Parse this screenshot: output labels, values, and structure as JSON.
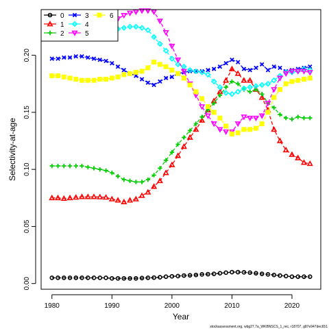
{
  "chart_data": {
    "type": "line",
    "xlabel": "Year",
    "ylabel": "Selectivity-at-age",
    "xlim": [
      1978.2,
      2024.8
    ],
    "ylim": [
      -0.005,
      0.24
    ],
    "x_ticks": [
      1980,
      1990,
      2000,
      2010,
      2020
    ],
    "y_ticks": [
      0.0,
      0.05,
      0.1,
      0.15,
      0.2
    ],
    "y_tick_labels": [
      "0.00",
      "0.05",
      "0.10",
      "0.15",
      "0.20"
    ],
    "x": [
      1980,
      1981,
      1982,
      1983,
      1984,
      1985,
      1986,
      1987,
      1988,
      1989,
      1990,
      1991,
      1992,
      1993,
      1994,
      1995,
      1996,
      1997,
      1998,
      1999,
      2000,
      2001,
      2002,
      2003,
      2004,
      2005,
      2006,
      2007,
      2008,
      2009,
      2010,
      2011,
      2012,
      2013,
      2014,
      2015,
      2016,
      2017,
      2018,
      2019,
      2020,
      2021,
      2022,
      2023
    ],
    "legend": {
      "position": "top-left",
      "columns": 3
    },
    "grid": false,
    "series": [
      {
        "name": "0",
        "color": "#000000",
        "marker": "circle",
        "values": [
          0.005,
          0.005,
          0.005,
          0.005,
          0.005,
          0.005,
          0.005,
          0.005,
          0.005,
          0.005,
          0.0045,
          0.0045,
          0.0045,
          0.0045,
          0.0045,
          0.0048,
          0.005,
          0.0052,
          0.0055,
          0.006,
          0.0063,
          0.0065,
          0.007,
          0.0072,
          0.0075,
          0.008,
          0.0082,
          0.0085,
          0.009,
          0.0095,
          0.01,
          0.01,
          0.0098,
          0.0095,
          0.009,
          0.0085,
          0.008,
          0.0075,
          0.007,
          0.0065,
          0.006,
          0.006,
          0.006,
          0.006
        ]
      },
      {
        "name": "1",
        "color": "#ff0000",
        "marker": "triangle-up",
        "values": [
          0.075,
          0.075,
          0.0745,
          0.075,
          0.0755,
          0.076,
          0.076,
          0.076,
          0.0758,
          0.0755,
          0.074,
          0.073,
          0.0715,
          0.073,
          0.074,
          0.077,
          0.08,
          0.085,
          0.09,
          0.097,
          0.104,
          0.112,
          0.12,
          0.128,
          0.135,
          0.143,
          0.152,
          0.16,
          0.168,
          0.178,
          0.188,
          0.184,
          0.178,
          0.178,
          0.17,
          0.163,
          0.152,
          0.135,
          0.125,
          0.117,
          0.113,
          0.11,
          0.106,
          0.105
        ]
      },
      {
        "name": "2",
        "color": "#00cc00",
        "marker": "plus",
        "values": [
          0.103,
          0.103,
          0.103,
          0.103,
          0.103,
          0.103,
          0.102,
          0.101,
          0.1,
          0.099,
          0.097,
          0.094,
          0.091,
          0.09,
          0.089,
          0.089,
          0.091,
          0.095,
          0.101,
          0.108,
          0.115,
          0.122,
          0.128,
          0.134,
          0.14,
          0.146,
          0.152,
          0.158,
          0.165,
          0.172,
          0.177,
          0.175,
          0.17,
          0.168,
          0.17,
          0.166,
          0.158,
          0.154,
          0.148,
          0.145,
          0.144,
          0.146,
          0.145,
          0.145
        ]
      },
      {
        "name": "3",
        "color": "#0000ff",
        "marker": "cross",
        "values": [
          0.197,
          0.197,
          0.198,
          0.198,
          0.199,
          0.199,
          0.198,
          0.197,
          0.196,
          0.195,
          0.193,
          0.19,
          0.187,
          0.184,
          0.182,
          0.179,
          0.176,
          0.174,
          0.177,
          0.18,
          0.181,
          0.184,
          0.185,
          0.186,
          0.186,
          0.186,
          0.187,
          0.188,
          0.19,
          0.193,
          0.196,
          0.194,
          0.188,
          0.187,
          0.189,
          0.192,
          0.187,
          0.19,
          0.189,
          0.186,
          0.187,
          0.188,
          0.189,
          0.19
        ]
      },
      {
        "name": "4",
        "color": "#00ffff",
        "marker": "diamond",
        "values": [
          0.217,
          0.218,
          0.219,
          0.219,
          0.22,
          0.22,
          0.22,
          0.221,
          0.221,
          0.222,
          0.222,
          0.223,
          0.224,
          0.225,
          0.225,
          0.224,
          0.222,
          0.216,
          0.21,
          0.204,
          0.197,
          0.192,
          0.19,
          0.187,
          0.186,
          0.185,
          0.183,
          0.177,
          0.172,
          0.167,
          0.166,
          0.168,
          0.171,
          0.172,
          0.173,
          0.174,
          0.175,
          0.178,
          0.182,
          0.185,
          0.185,
          0.186,
          0.188,
          0.187
        ]
      },
      {
        "name": "5",
        "color": "#ff00ff",
        "marker": "triangle-down",
        "values": [
          0.218,
          0.219,
          0.22,
          0.22,
          0.221,
          0.221,
          0.221,
          0.222,
          0.224,
          0.226,
          0.229,
          0.232,
          0.235,
          0.237,
          0.238,
          0.239,
          0.239,
          0.238,
          0.23,
          0.22,
          0.208,
          0.196,
          0.186,
          0.175,
          0.165,
          0.155,
          0.147,
          0.14,
          0.135,
          0.133,
          0.133,
          0.14,
          0.146,
          0.145,
          0.145,
          0.147,
          0.158,
          0.17,
          0.18,
          0.184,
          0.186,
          0.186,
          0.186,
          0.185
        ]
      },
      {
        "name": "6",
        "color": "#ffff00",
        "marker": "square",
        "values": [
          0.182,
          0.182,
          0.181,
          0.18,
          0.179,
          0.178,
          0.178,
          0.178,
          0.179,
          0.179,
          0.18,
          0.181,
          0.183,
          0.184,
          0.185,
          0.186,
          0.189,
          0.194,
          0.192,
          0.19,
          0.187,
          0.184,
          0.18,
          0.174,
          0.168,
          0.162,
          0.155,
          0.15,
          0.145,
          0.138,
          0.131,
          0.132,
          0.135,
          0.135,
          0.136,
          0.14,
          0.15,
          0.163,
          0.17,
          0.175,
          0.177,
          0.178,
          0.179,
          0.18
        ]
      }
    ]
  },
  "footer": {
    "source_text": "stockassessment.org, wbg27.7a_WKBNSCS_1_rec, r18707, g87e947dec651"
  }
}
